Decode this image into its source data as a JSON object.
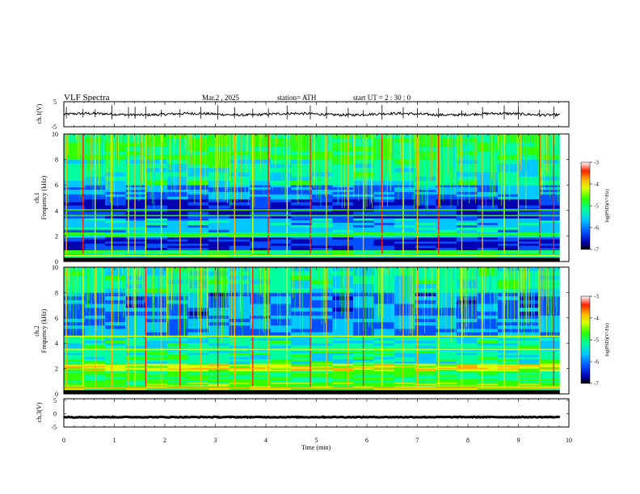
{
  "header": {
    "title": "VLF  Spectra",
    "date": "Mar.2  , 2025",
    "station": "station= ATH",
    "start": "start  UT  =   2  : 30 : 0"
  },
  "chart_data": [
    {
      "type": "line",
      "name": "ch1-waveform",
      "ylabel": "ch.1(V)",
      "ylim": [
        -5,
        5
      ],
      "yticks": [
        "5",
        "-5"
      ],
      "xlim": [
        0,
        10
      ],
      "approx_level": 0,
      "approx_noise_amplitude": 1.0,
      "spikes_t_min": [
        0.05,
        0.38,
        0.62,
        0.95,
        1.28,
        1.41,
        1.62,
        1.93,
        2.3,
        2.71,
        3.05,
        3.38,
        3.74,
        4.05,
        4.42,
        4.88,
        5.2,
        5.63,
        5.93,
        6.3,
        6.72,
        7.0,
        7.42,
        7.88,
        8.29,
        8.72,
        9.0,
        9.42,
        9.7
      ]
    },
    {
      "type": "heatmap",
      "name": "ch1-spectrogram",
      "ylabel": "Frequency  (kHz)",
      "channel_label": "ch.1",
      "xlim": [
        0,
        9.82
      ],
      "ylim": [
        0,
        10
      ],
      "yticks": [
        "0",
        "2",
        "4",
        "6",
        "8",
        "10"
      ],
      "color_scale": {
        "label": "log(PSD)(V²/Hz)",
        "range": [
          -7,
          -3
        ],
        "ticks": [
          "-3",
          "-4",
          "-5",
          "-6",
          "-7"
        ],
        "colors": [
          "#000000",
          "#0000b0",
          "#0050ff",
          "#00c8ff",
          "#00ffa0",
          "#30ff00",
          "#d8ff00",
          "#ffb000",
          "#ff2000",
          "#ffffff"
        ]
      },
      "levels_log_psd": [
        {
          "f_khz": [
            0,
            0.3
          ],
          "level": -7
        },
        {
          "f_khz": [
            0.3,
            0.6
          ],
          "level": -5.3
        },
        {
          "f_khz": [
            0.6,
            0.9
          ],
          "level": -5.0
        },
        {
          "f_khz": [
            0.9,
            1.9
          ],
          "level": -6.2
        },
        {
          "f_khz": [
            1.9,
            2.3
          ],
          "level": -5.2
        },
        {
          "f_khz": [
            2.3,
            3.4
          ],
          "level": -5.6
        },
        {
          "f_khz": [
            3.4,
            4.9
          ],
          "level": -6.2
        },
        {
          "f_khz": [
            4.9,
            6.0
          ],
          "level": -5.8
        },
        {
          "f_khz": [
            6.0,
            8.0
          ],
          "level": -5.3
        },
        {
          "f_khz": [
            8.0,
            10.0
          ],
          "level": -5.0
        }
      ],
      "lines": [
        {
          "f_khz": 0.45,
          "level": -4.4
        },
        {
          "f_khz": 2.1,
          "level": -3.9,
          "t_min": [
            2.7,
            3.9
          ]
        },
        {
          "f_khz": 2.15,
          "level": -4.8
        },
        {
          "f_khz": 3.6,
          "level": -4.9
        },
        {
          "f_khz": 4.05,
          "level": -5.0
        }
      ],
      "impulsive_burst_times_min": [
        0.05,
        0.38,
        0.62,
        0.95,
        1.28,
        1.41,
        1.62,
        1.93,
        2.3,
        2.71,
        3.05,
        3.38,
        3.74,
        4.05,
        4.42,
        4.88,
        5.2,
        5.63,
        5.93,
        6.3,
        6.72,
        7.0,
        7.42,
        7.88,
        8.29,
        8.72,
        9.0,
        9.42,
        9.7
      ]
    },
    {
      "type": "heatmap",
      "name": "ch2-spectrogram",
      "ylabel": "Frequency  (kHz)",
      "channel_label": "ch.2",
      "xlim": [
        0,
        9.82
      ],
      "ylim": [
        0,
        10
      ],
      "yticks": [
        "0",
        "2",
        "4",
        "6",
        "8",
        "10"
      ],
      "color_scale": {
        "label": "log(PSD)(V²/Hz)",
        "range": [
          -7,
          -3
        ],
        "ticks": [
          "-3",
          "-4",
          "-5",
          "-6",
          "-7"
        ],
        "colors": [
          "#000000",
          "#0000b0",
          "#0050ff",
          "#00c8ff",
          "#00ffa0",
          "#30ff00",
          "#d8ff00",
          "#ffb000",
          "#ff2000",
          "#ffffff"
        ]
      },
      "levels_log_psd": [
        {
          "f_khz": [
            0,
            0.3
          ],
          "level": -7
        },
        {
          "f_khz": [
            0.3,
            0.9
          ],
          "level": -4.7
        },
        {
          "f_khz": [
            0.9,
            1.8
          ],
          "level": -5.0
        },
        {
          "f_khz": [
            1.8,
            2.4
          ],
          "level": -4.4
        },
        {
          "f_khz": [
            2.4,
            3.4
          ],
          "level": -5.2
        },
        {
          "f_khz": [
            3.4,
            4.6
          ],
          "level": -5.3
        },
        {
          "f_khz": [
            4.6,
            6.2
          ],
          "level": -5.8
        },
        {
          "f_khz": [
            6.2,
            8.0
          ],
          "level": -5.9
        },
        {
          "f_khz": [
            8.0,
            10.0
          ],
          "level": -5.3
        }
      ],
      "lines": [
        {
          "f_khz": 0.45,
          "level": -4.2
        },
        {
          "f_khz": 2.0,
          "level": -4.0,
          "t_min": [
            2.5,
            4.0
          ]
        },
        {
          "f_khz": 2.0,
          "level": -4.0,
          "t_min": [
            7.4,
            8.4
          ]
        },
        {
          "f_khz": 3.5,
          "level": -4.3
        },
        {
          "f_khz": 4.55,
          "level": -4.3
        }
      ],
      "impulsive_burst_times_min": [
        0.05,
        0.38,
        0.62,
        0.95,
        1.28,
        1.41,
        1.62,
        1.93,
        2.3,
        2.71,
        3.05,
        3.38,
        3.74,
        4.05,
        4.42,
        4.88,
        5.2,
        5.63,
        5.93,
        6.3,
        6.72,
        7.0,
        7.42,
        7.88,
        8.29,
        8.72,
        9.0,
        9.42,
        9.7
      ]
    },
    {
      "type": "line",
      "name": "ch3-waveform",
      "ylabel": "ch.3(V)",
      "ylim": [
        -5,
        5
      ],
      "yticks": [
        "5",
        "0",
        "-5"
      ],
      "xlim": [
        0,
        10
      ],
      "approx_level": -1.5,
      "approx_noise_amplitude": 0.3
    }
  ],
  "x_axis": {
    "label": "Time  (min)",
    "range": [
      0,
      10
    ],
    "ticks": [
      "0",
      "1",
      "2",
      "3",
      "4",
      "5",
      "6",
      "7",
      "8",
      "9",
      "10"
    ]
  }
}
